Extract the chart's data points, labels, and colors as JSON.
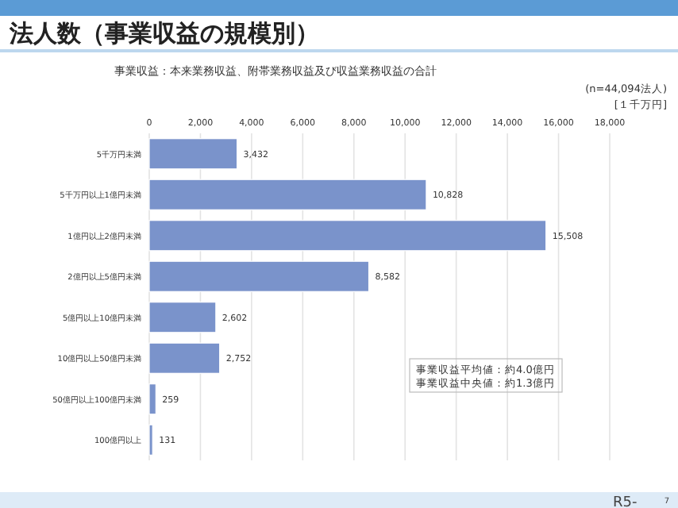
{
  "chart_data": {
    "type": "bar",
    "orientation": "horizontal",
    "title": "法人数（事業収益の規模別）",
    "subtitle": "事業収益：本来業務収益、附帯業務収益及び収益業務収益の合計",
    "categories": [
      "5千万円未満",
      "5千万円以上1億円未満",
      "1億円以上2億円未満",
      "2億円以上5億円未満",
      "5億円以上10億円未満",
      "10億円以上50億円未満",
      "50億円以上100億円未満",
      "100億円以上"
    ],
    "values": [
      3432,
      10828,
      15508,
      8582,
      2602,
      2752,
      259,
      131
    ],
    "value_labels": [
      "3,432",
      "10,828",
      "15,508",
      "8,582",
      "2,602",
      "2,752",
      "259",
      "131"
    ],
    "color": "#7a93cb",
    "xlim": [
      0,
      18000
    ],
    "xticks": [
      {
        "value": 0,
        "label": "0"
      },
      {
        "value": 2000,
        "label": "2,000"
      },
      {
        "value": 4000,
        "label": "4,000"
      },
      {
        "value": 6000,
        "label": "6,000"
      },
      {
        "value": 8000,
        "label": "8,000"
      },
      {
        "value": 10000,
        "label": "10,000"
      },
      {
        "value": 12000,
        "label": "12,000"
      },
      {
        "value": 14000,
        "label": "14,000"
      },
      {
        "value": 16000,
        "label": "16,000"
      },
      {
        "value": 18000,
        "label": "18,000"
      }
    ],
    "grid": "x",
    "annotations": [
      "(n=44,094法人)",
      "[１千万円]",
      "事業収益平均値：約4.0億円",
      "事業収益中央値：約1.3億円",
      "R5-",
      "7"
    ]
  }
}
